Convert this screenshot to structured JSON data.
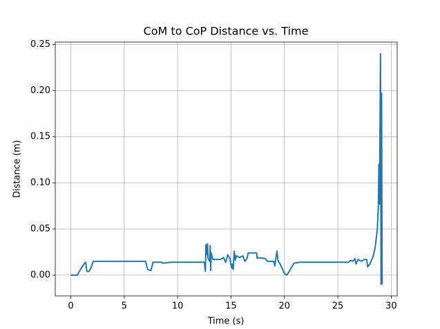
{
  "chart_data": {
    "type": "line",
    "title": "CoM to CoP Distance vs. Time",
    "x_label": "Time (s)",
    "y_label": "Distance (m)",
    "x": [
      0,
      0.6,
      1.0,
      1.3,
      1.4,
      1.5,
      1.7,
      1.9,
      2.1,
      3,
      7,
      7.2,
      7.5,
      7.7,
      8.5,
      8.6,
      9.5,
      10,
      12.5,
      12.6,
      12.65,
      12.7,
      12.8,
      12.85,
      13,
      13.05,
      13.1,
      13.15,
      13.3,
      14,
      14.3,
      14.5,
      14.7,
      14.9,
      15.05,
      15.1,
      15.2,
      15.3,
      15.4,
      15.5,
      15.8,
      16.1,
      16.3,
      16.5,
      16.6,
      17.4,
      17.45,
      17.5,
      18.2,
      18.4,
      19,
      19.1,
      19.3,
      19.4,
      19.6,
      20,
      20.2,
      20.4,
      20.9,
      21.5,
      26.0,
      26.2,
      26.4,
      26.6,
      26.7,
      26.9,
      27.2,
      27.5,
      27.7,
      27.8,
      28,
      28.3,
      28.5,
      28.7,
      28.8,
      28.85,
      28.9,
      29.0,
      29.05,
      29.1,
      29.15
    ],
    "series": [
      {
        "name": "Distance",
        "color": "#1f77b4",
        "values": [
          0.0,
          0.0,
          0.008,
          0.013,
          0.014,
          0.004,
          0.004,
          0.008,
          0.015,
          0.015,
          0.015,
          0.006,
          0.005,
          0.014,
          0.014,
          0.013,
          0.014,
          0.014,
          0.014,
          0.004,
          0.033,
          0.022,
          0.034,
          0.018,
          0.015,
          0.032,
          0.005,
          0.024,
          0.017,
          0.017,
          0.019,
          0.014,
          0.022,
          0.018,
          0.008,
          0.012,
          0.006,
          0.026,
          0.016,
          0.021,
          0.019,
          0.021,
          0.015,
          0.018,
          0.024,
          0.024,
          0.018,
          0.019,
          0.018,
          0.015,
          0.015,
          0.01,
          0.026,
          0.016,
          0.012,
          0.002,
          0.0,
          0.003,
          0.013,
          0.014,
          0.014,
          0.016,
          0.015,
          0.018,
          0.012,
          0.017,
          0.015,
          0.017,
          0.017,
          0.009,
          0.012,
          0.02,
          0.03,
          0.05,
          0.075,
          0.12,
          0.077,
          0.24,
          -0.01,
          0.197,
          -0.01
        ]
      }
    ],
    "xlim": [
      -1.455,
      30.56
    ],
    "ylim": [
      -0.0225,
      0.2525
    ],
    "xticks": [
      0,
      5,
      10,
      15,
      20,
      25,
      30
    ],
    "yticks": [
      {
        "value": 0,
        "label": "0.00"
      },
      {
        "value": 0.05,
        "label": "0.05"
      },
      {
        "value": 0.1,
        "label": "0.10"
      },
      {
        "value": 0.15,
        "label": "0.15"
      },
      {
        "value": 0.2,
        "label": "0.20"
      },
      {
        "value": 0.25,
        "label": "0.25"
      }
    ],
    "grid": true
  }
}
